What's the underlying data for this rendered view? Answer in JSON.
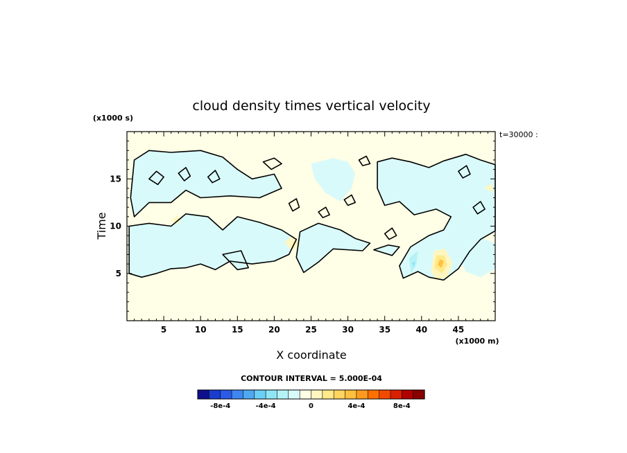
{
  "chart_data": {
    "type": "heatmap",
    "title": "cloud density times vertical velocity",
    "xlabel": "X coordinate",
    "ylabel": "Time",
    "x_unit": "(x1000 m)",
    "y_unit": "(x1000 s)",
    "time_label": "t=30000 :",
    "contour_interval": "CONTOUR INTERVAL = 5.000E-04",
    "xlim": [
      0,
      50
    ],
    "ylim": [
      0,
      20
    ],
    "x_ticks": [
      5,
      10,
      15,
      20,
      25,
      30,
      35,
      40,
      45
    ],
    "x_tick_labels": [
      "5",
      "10",
      "15",
      "20",
      "25",
      "30",
      "35",
      "40",
      "45"
    ],
    "y_ticks": [
      5,
      10,
      15
    ],
    "y_tick_labels": [
      "5",
      "10",
      "15"
    ],
    "background_color": "#fffee6",
    "colorbar": {
      "levels": [
        -0.001,
        -0.0009,
        -0.0008,
        -0.0007,
        -0.0006,
        -0.0005,
        -0.0004,
        -0.0003,
        -0.0002,
        -0.0001,
        0,
        0.0001,
        0.0002,
        0.0003,
        0.0004,
        0.0005,
        0.0006,
        0.0007,
        0.0008,
        0.0009,
        0.001
      ],
      "colors": [
        "#0f0f8c",
        "#1a3ccd",
        "#2a5ae6",
        "#3f86f0",
        "#4fa8f2",
        "#6ccff5",
        "#8ee6f5",
        "#b5f2f7",
        "#d9fafa",
        "#fffee6",
        "#fff6c0",
        "#ffe98a",
        "#ffd45f",
        "#ffbf40",
        "#ff9a1f",
        "#ff7000",
        "#f24a00",
        "#d92000",
        "#b00000",
        "#8a0000"
      ],
      "tick_labels": [
        "-8e-4",
        "-4e-4",
        "0",
        "4e-4",
        "8e-4"
      ],
      "tick_values": [
        -0.0008,
        -0.0004,
        0,
        0.0004,
        0.0008
      ]
    },
    "regions": [
      {
        "level": "negative-weak",
        "color": "#d9fafa",
        "points": [
          [
            0.5,
            13
          ],
          [
            1,
            17
          ],
          [
            3,
            18
          ],
          [
            6,
            17.8
          ],
          [
            10,
            18
          ],
          [
            13,
            17.3
          ],
          [
            15,
            16
          ],
          [
            17,
            15
          ],
          [
            20,
            15.5
          ],
          [
            21,
            14
          ],
          [
            18,
            13
          ],
          [
            14,
            13.2
          ],
          [
            10,
            13
          ],
          [
            8,
            13.8
          ],
          [
            6,
            12.5
          ],
          [
            3,
            12.5
          ],
          [
            1,
            11
          ]
        ]
      },
      {
        "level": "negative-weak",
        "color": "#d9fafa",
        "points": [
          [
            0.3,
            10
          ],
          [
            3,
            10.3
          ],
          [
            6,
            10
          ],
          [
            8,
            11.3
          ],
          [
            11,
            11
          ],
          [
            13,
            9.6
          ],
          [
            15,
            11
          ],
          [
            18,
            10.4
          ],
          [
            21,
            9.6
          ],
          [
            23,
            8.6
          ],
          [
            22,
            7
          ],
          [
            20,
            6.3
          ],
          [
            17,
            6
          ],
          [
            14,
            6.3
          ],
          [
            12,
            5.4
          ],
          [
            10,
            6
          ],
          [
            8,
            5.6
          ],
          [
            6,
            5.5
          ],
          [
            4,
            5
          ],
          [
            2,
            4.6
          ],
          [
            0.3,
            5
          ]
        ]
      },
      {
        "level": "negative-weak",
        "color": "#d9fafa",
        "points": [
          [
            13,
            7
          ],
          [
            15,
            5.4
          ],
          [
            16.5,
            5.6
          ],
          [
            15.5,
            7.4
          ]
        ]
      },
      {
        "level": "negative-weak",
        "color": "#d9fafa",
        "points": [
          [
            23.5,
            9.4
          ],
          [
            26,
            10.3
          ],
          [
            29,
            9.6
          ],
          [
            31,
            8.7
          ],
          [
            33,
            8.2
          ],
          [
            32,
            7.4
          ],
          [
            28,
            7.6
          ],
          [
            26,
            6.2
          ],
          [
            24,
            5.1
          ],
          [
            23,
            6.7
          ]
        ]
      },
      {
        "level": "negative-weak",
        "color": "#d9fafa",
        "points": [
          [
            25,
            16.6
          ],
          [
            28,
            17.2
          ],
          [
            30,
            16.8
          ],
          [
            31,
            15.6
          ],
          [
            30.5,
            14
          ],
          [
            29,
            12.6
          ],
          [
            27,
            13.5
          ],
          [
            25.5,
            15
          ]
        ]
      },
      {
        "level": "negative-weak",
        "color": "#d9fafa",
        "points": [
          [
            34,
            16.8
          ],
          [
            36,
            17.2
          ],
          [
            38.5,
            16.8
          ],
          [
            41,
            16.2
          ],
          [
            43,
            16.9
          ],
          [
            46,
            17.6
          ],
          [
            48,
            17
          ],
          [
            50,
            16.5
          ],
          [
            50,
            9.5
          ],
          [
            48,
            8.6
          ],
          [
            46.5,
            7.3
          ],
          [
            45,
            5.5
          ],
          [
            43,
            4.3
          ],
          [
            41,
            4.6
          ],
          [
            39.5,
            5.2
          ],
          [
            37.5,
            4.5
          ],
          [
            37,
            5.8
          ],
          [
            38.5,
            7.8
          ],
          [
            41,
            9
          ],
          [
            43,
            9.6
          ],
          [
            44,
            11
          ],
          [
            42,
            11.8
          ],
          [
            39,
            11.2
          ],
          [
            37,
            12.6
          ],
          [
            35,
            12.2
          ],
          [
            34,
            14
          ]
        ]
      },
      {
        "level": "negative-weak",
        "color": "#d9fafa",
        "points": [
          [
            46.5,
            9.6
          ],
          [
            48,
            8.8
          ],
          [
            50,
            8.2
          ],
          [
            50,
            5.5
          ],
          [
            48,
            4.6
          ],
          [
            46,
            5.2
          ],
          [
            45,
            6.8
          ]
        ]
      },
      {
        "level": "negative-weak",
        "color": "#d9fafa",
        "points": [
          [
            33.5,
            7.5
          ],
          [
            35.5,
            8
          ],
          [
            37,
            7.8
          ],
          [
            36,
            6.9
          ]
        ]
      },
      {
        "level": "negative-mid",
        "color": "#b5f2f7",
        "points": [
          [
            38.3,
            6.6
          ],
          [
            39.5,
            7.4
          ],
          [
            39.3,
            6
          ],
          [
            38.6,
            5
          ]
        ]
      },
      {
        "level": "negative-mid",
        "color": "#8ee6f5",
        "points": [
          [
            38.7,
            6.1
          ],
          [
            39.1,
            6.3
          ],
          [
            39,
            5.6
          ]
        ]
      },
      {
        "level": "positive-weak",
        "color": "#fff6c0",
        "points": [
          [
            41.3,
            5.2
          ],
          [
            41.7,
            7.4
          ],
          [
            43.2,
            7.6
          ],
          [
            44.2,
            6.1
          ],
          [
            43.5,
            4.6
          ],
          [
            42,
            4.3
          ]
        ]
      },
      {
        "level": "positive-mid",
        "color": "#ffe98a",
        "points": [
          [
            41.7,
            5.6
          ],
          [
            42,
            6.9
          ],
          [
            43.1,
            6.9
          ],
          [
            43.5,
            5.9
          ],
          [
            42.8,
            5
          ]
        ]
      },
      {
        "level": "positive-strong",
        "color": "#ffbf40",
        "points": [
          [
            42.2,
            5.9
          ],
          [
            42.5,
            6.5
          ],
          [
            43,
            6.3
          ],
          [
            42.7,
            5.6
          ]
        ]
      },
      {
        "level": "positive-weak",
        "color": "#fff6c0",
        "points": [
          [
            21.4,
            8.3
          ],
          [
            22.5,
            9
          ],
          [
            23.5,
            8.1
          ],
          [
            22.4,
            7.4
          ]
        ]
      },
      {
        "level": "positive-weak",
        "color": "#fff6c0",
        "points": [
          [
            6,
            10.5
          ],
          [
            7,
            11.2
          ],
          [
            7.3,
            10.3
          ]
        ]
      },
      {
        "level": "positive-weak",
        "color": "#fff6c0",
        "points": [
          [
            48.5,
            14
          ],
          [
            49.5,
            14.5
          ],
          [
            49.8,
            13.6
          ]
        ]
      }
    ],
    "contours": [
      [
        [
          0.5,
          13
        ],
        [
          1,
          17
        ],
        [
          3,
          18
        ],
        [
          6,
          17.8
        ],
        [
          10,
          18
        ],
        [
          13,
          17.3
        ],
        [
          15,
          16
        ],
        [
          17,
          15
        ],
        [
          20,
          15.5
        ],
        [
          21,
          14
        ],
        [
          18,
          13
        ],
        [
          14,
          13.2
        ],
        [
          10,
          13
        ],
        [
          8,
          13.8
        ],
        [
          6,
          12.5
        ],
        [
          3,
          12.5
        ],
        [
          1,
          11
        ]
      ],
      [
        [
          0.3,
          10
        ],
        [
          3,
          10.3
        ],
        [
          6,
          10
        ],
        [
          8,
          11.3
        ],
        [
          11,
          11
        ],
        [
          13,
          9.6
        ],
        [
          15,
          11
        ],
        [
          18,
          10.4
        ],
        [
          21,
          9.6
        ],
        [
          23,
          8.6
        ],
        [
          22,
          7
        ],
        [
          20,
          6.3
        ],
        [
          17,
          6
        ],
        [
          14,
          6.3
        ],
        [
          12,
          5.4
        ],
        [
          10,
          6
        ],
        [
          8,
          5.6
        ],
        [
          6,
          5.5
        ],
        [
          4,
          5
        ],
        [
          2,
          4.6
        ],
        [
          0.3,
          5
        ]
      ],
      [
        [
          23.5,
          9.4
        ],
        [
          26,
          10.3
        ],
        [
          29,
          9.6
        ],
        [
          31,
          8.7
        ],
        [
          33,
          8.2
        ],
        [
          32,
          7.4
        ],
        [
          28,
          7.6
        ],
        [
          26,
          6.2
        ],
        [
          24,
          5.1
        ],
        [
          23,
          6.7
        ]
      ],
      [
        [
          34,
          16.8
        ],
        [
          36,
          17.2
        ],
        [
          38.5,
          16.8
        ],
        [
          41,
          16.2
        ],
        [
          43,
          16.9
        ],
        [
          46,
          17.6
        ],
        [
          48,
          17
        ],
        [
          50,
          16.5
        ],
        [
          50,
          9.5
        ],
        [
          48,
          8.6
        ],
        [
          46.5,
          7.3
        ],
        [
          45,
          5.5
        ],
        [
          43,
          4.3
        ],
        [
          41,
          4.6
        ],
        [
          39.5,
          5.2
        ],
        [
          37.5,
          4.5
        ],
        [
          37,
          5.8
        ],
        [
          38.5,
          7.8
        ],
        [
          41,
          9
        ],
        [
          43,
          9.6
        ],
        [
          44,
          11
        ],
        [
          42,
          11.8
        ],
        [
          39,
          11.2
        ],
        [
          37,
          12.6
        ],
        [
          35,
          12.2
        ],
        [
          34,
          14
        ]
      ],
      [
        [
          33.5,
          7.5
        ],
        [
          35.5,
          8
        ],
        [
          37,
          7.8
        ],
        [
          36,
          6.9
        ]
      ],
      [
        [
          13,
          7
        ],
        [
          15,
          5.4
        ],
        [
          16.5,
          5.6
        ],
        [
          15.5,
          7.4
        ]
      ],
      [
        [
          18.5,
          16.8
        ],
        [
          20,
          17.2
        ],
        [
          21,
          16.6
        ],
        [
          19.6,
          16
        ]
      ],
      [
        [
          31.5,
          17
        ],
        [
          32.5,
          17.4
        ],
        [
          33,
          16.6
        ],
        [
          32,
          16.4
        ]
      ],
      [
        [
          3,
          15
        ],
        [
          4,
          15.8
        ],
        [
          5,
          15.2
        ],
        [
          4.2,
          14.4
        ]
      ],
      [
        [
          7,
          15.6
        ],
        [
          8,
          16.2
        ],
        [
          8.6,
          15.3
        ],
        [
          7.8,
          14.8
        ]
      ],
      [
        [
          11,
          15.2
        ],
        [
          12,
          15.9
        ],
        [
          12.6,
          15
        ],
        [
          11.6,
          14.6
        ]
      ],
      [
        [
          22,
          12.4
        ],
        [
          23,
          12.9
        ],
        [
          23.4,
          12
        ],
        [
          22.5,
          11.6
        ]
      ],
      [
        [
          26,
          11.5
        ],
        [
          27,
          12
        ],
        [
          27.5,
          11.2
        ],
        [
          26.6,
          10.9
        ]
      ],
      [
        [
          35,
          9.2
        ],
        [
          36,
          9.8
        ],
        [
          36.6,
          9
        ],
        [
          35.6,
          8.6
        ]
      ],
      [
        [
          47,
          12
        ],
        [
          48,
          12.6
        ],
        [
          48.6,
          11.8
        ],
        [
          47.6,
          11.3
        ]
      ],
      [
        [
          45,
          15.8
        ],
        [
          46.1,
          16.4
        ],
        [
          46.6,
          15.5
        ],
        [
          45.6,
          15.1
        ]
      ],
      [
        [
          29.5,
          12.8
        ],
        [
          30.5,
          13.3
        ],
        [
          31,
          12.5
        ],
        [
          30,
          12.2
        ]
      ]
    ]
  }
}
